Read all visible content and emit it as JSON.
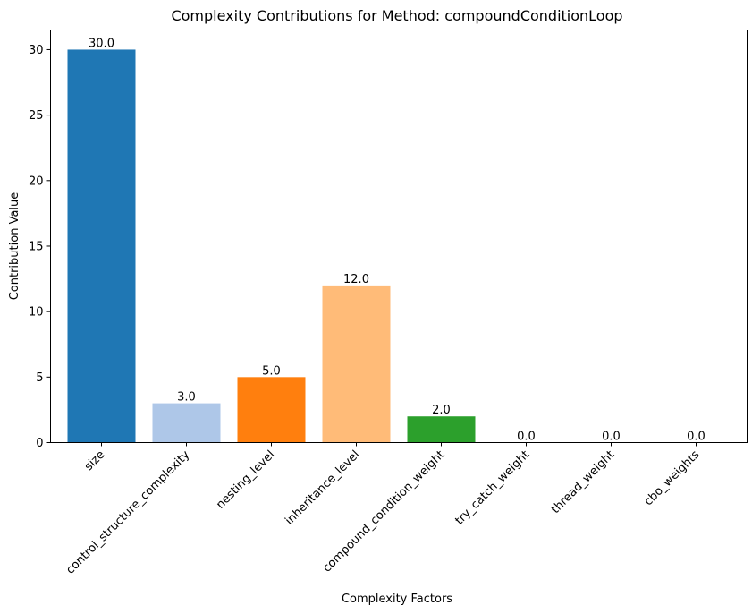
{
  "chart_data": {
    "type": "bar",
    "title": "Complexity Contributions for Method: compoundConditionLoop",
    "xlabel": "Complexity Factors",
    "ylabel": "Contribution Value",
    "categories": [
      "size",
      "control_structure_complexity",
      "nesting_level",
      "inheritance_level",
      "compound_condition_weight",
      "try_catch_weight",
      "thread_weight",
      "cbo_weights"
    ],
    "values": [
      30.0,
      3.0,
      5.0,
      12.0,
      2.0,
      0.0,
      0.0,
      0.0
    ],
    "data_labels": [
      "30.0",
      "3.0",
      "5.0",
      "12.0",
      "2.0",
      "0.0",
      "0.0",
      "0.0"
    ],
    "colors": [
      "#1f77b4",
      "#aec7e8",
      "#ff7f0e",
      "#ffbb78",
      "#2ca02c",
      "#98df8a",
      "#d62728",
      "#ff9896"
    ],
    "ylim": [
      0,
      31.5
    ],
    "yticks": [
      0,
      5,
      10,
      15,
      20,
      25,
      30
    ],
    "grid": false,
    "legend": "none"
  }
}
